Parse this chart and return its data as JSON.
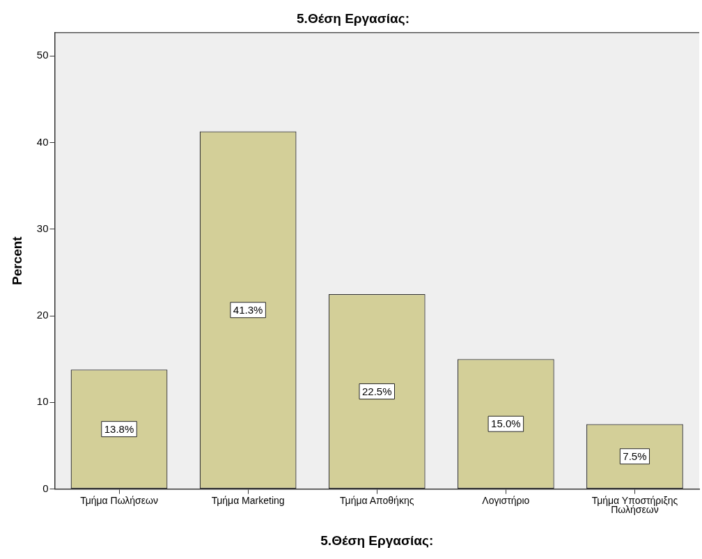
{
  "chart_data": {
    "type": "bar",
    "title": "5.Θέση Εργασίας:",
    "xlabel": "5.Θέση Εργασίας:",
    "ylabel": "Percent",
    "categories": [
      "Τμήμα Πωλήσεων",
      "Τμήμα Marketing",
      "Τμήμα Αποθήκης",
      "Λογιστήριο",
      "Τμήμα Υποστήριξης Πωλήσεων"
    ],
    "values": [
      13.8,
      41.3,
      22.5,
      15.0,
      7.5
    ],
    "value_labels": [
      "13.8%",
      "41.3%",
      "22.5%",
      "15.0%",
      "7.5%"
    ],
    "color": "#d3cf98",
    "ylim": [
      0,
      52.7
    ],
    "yticks": [
      0,
      10,
      20,
      30,
      40,
      50
    ],
    "grid": false,
    "legend": false
  }
}
